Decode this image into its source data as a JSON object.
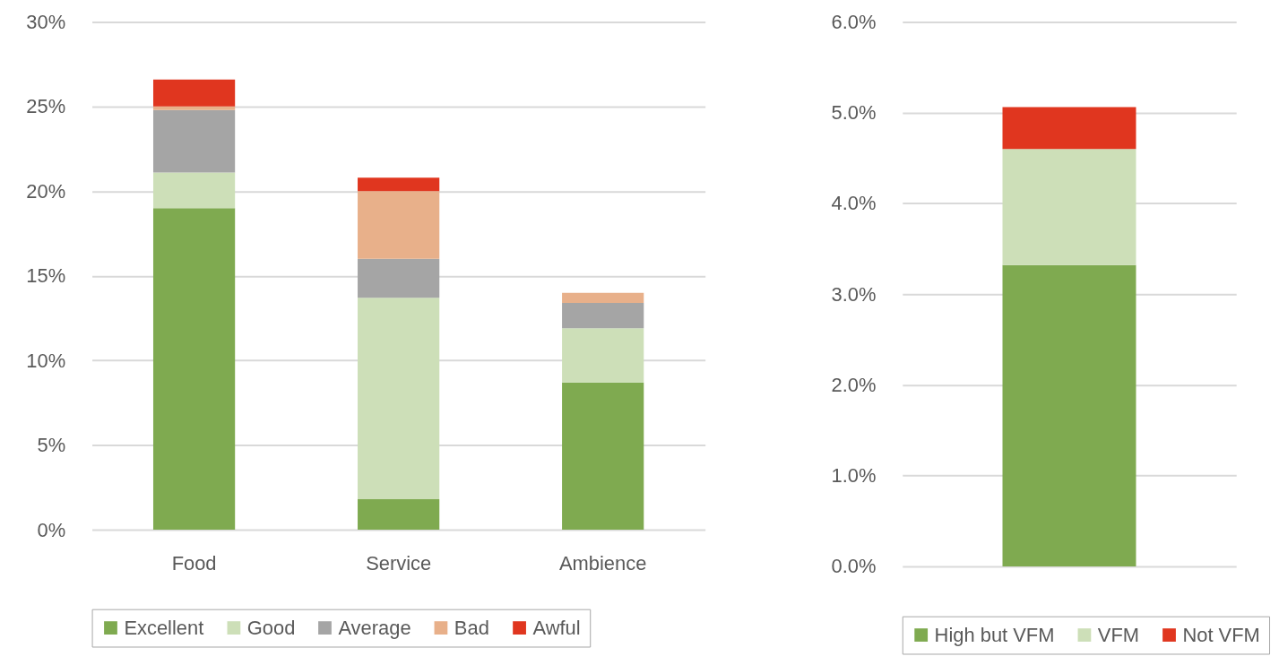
{
  "chart_data": [
    {
      "type": "bar",
      "stacked": true,
      "categories": [
        "Food",
        "Service",
        "Ambience"
      ],
      "series": [
        {
          "name": "Excellent",
          "color": "#7faa50",
          "values": [
            19.0,
            1.8,
            8.7
          ]
        },
        {
          "name": "Good",
          "color": "#cddfb8",
          "values": [
            2.1,
            11.9,
            3.2
          ]
        },
        {
          "name": "Average",
          "color": "#a5a5a5",
          "values": [
            3.7,
            2.3,
            1.5
          ]
        },
        {
          "name": "Bad",
          "color": "#e8b08a",
          "values": [
            0.2,
            4.0,
            0.6
          ]
        },
        {
          "name": "Awful",
          "color": "#e0361f",
          "values": [
            1.6,
            0.8,
            null
          ]
        }
      ],
      "ylim": [
        0,
        30
      ],
      "yticks": [
        {
          "value": 0,
          "label": "0%"
        },
        {
          "value": 5,
          "label": "5%"
        },
        {
          "value": 10,
          "label": "10%"
        },
        {
          "value": 15,
          "label": "15%"
        },
        {
          "value": 20,
          "label": "20%"
        },
        {
          "value": 25,
          "label": "25%"
        },
        {
          "value": 30,
          "label": "30%"
        }
      ],
      "grid": "y",
      "legend": "bottom"
    },
    {
      "type": "bar",
      "stacked": true,
      "categories": [
        null
      ],
      "series": [
        {
          "name": "High but VFM",
          "color": "#7faa50",
          "values": [
            3.32
          ]
        },
        {
          "name": "VFM",
          "color": "#cddfb8",
          "values": [
            1.28
          ]
        },
        {
          "name": "Not VFM",
          "color": "#e0361f",
          "values": [
            0.46
          ]
        }
      ],
      "ylim": [
        0,
        6
      ],
      "yticks": [
        {
          "value": 0,
          "label": "0.0%"
        },
        {
          "value": 1,
          "label": "1.0%"
        },
        {
          "value": 2,
          "label": "2.0%"
        },
        {
          "value": 3,
          "label": "3.0%"
        },
        {
          "value": 4,
          "label": "4.0%"
        },
        {
          "value": 5,
          "label": "5.0%"
        },
        {
          "value": 6,
          "label": "6.0%"
        }
      ],
      "grid": "y",
      "legend": "bottom",
      "tick_labels": "y"
    }
  ]
}
